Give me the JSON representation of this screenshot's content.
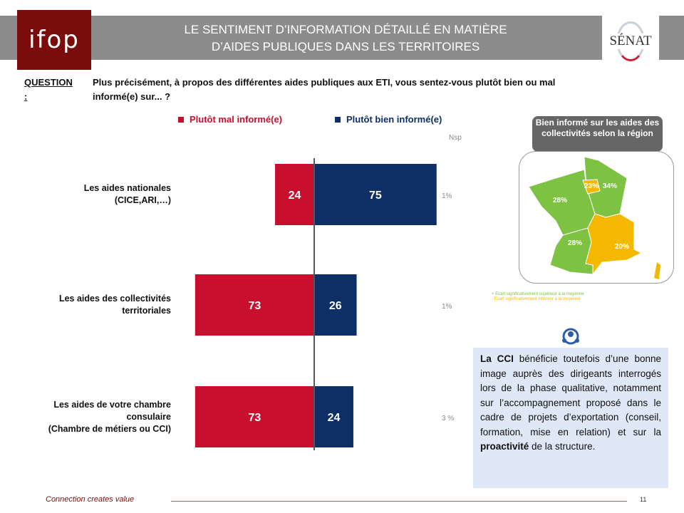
{
  "header": {
    "logo": "ifop",
    "title_line1": "LE SENTIMENT D’INFORMATION DÉTAILLÉ EN MATIÈRE",
    "title_line2": "D’AIDES PUBLIQUES DANS LES TERRITOIRES",
    "senat_logo": "SÉNAT"
  },
  "question": {
    "label": "QUESTION :",
    "text": "Plus précisément, à propos des différentes aides publiques aux ETI, vous sentez-vous plutôt bien ou mal informé(e) sur... ?"
  },
  "chart_data": {
    "type": "bar",
    "orientation": "horizontal-diverging",
    "categories": [
      "Les aides nationales (CICE,ARI,…)",
      "Les aides des collectivités territoriales",
      "Les aides de votre chambre consulaire (Chambre de métiers ou CCI)"
    ],
    "category_lines": [
      [
        "Les aides nationales",
        "(CICE,ARI,…)"
      ],
      [
        "Les aides des collectivités",
        "territoriales"
      ],
      [
        "Les aides de votre chambre",
        "consulaire",
        "(Chambre de métiers ou CCI)"
      ]
    ],
    "series": [
      {
        "name": "Plutôt mal informé(e)",
        "values": [
          24,
          73,
          73
        ],
        "color": "#c8102e"
      },
      {
        "name": "Plutôt bien informé(e)",
        "values": [
          75,
          26,
          24
        ],
        "color": "#0d2f66"
      }
    ],
    "nsp_label": "Nsp",
    "nsp": [
      "1%",
      "1%",
      "3 %"
    ],
    "legend_position": "top"
  },
  "map": {
    "title": "Bien informé sur les aides des collectivités selon la région",
    "regions": [
      {
        "label": "23%",
        "color": "#f5b800"
      },
      {
        "label": "34%",
        "color": "#7dc242"
      },
      {
        "label": "28%",
        "color": "#7dc242"
      },
      {
        "label": "28%",
        "color": "#7dc242"
      },
      {
        "label": "20%",
        "color": "#f5b800"
      }
    ],
    "legend": [
      "+ Ecart significativement supérieur à la moyenne",
      "- Ecart significativement inférieur à la moyenne"
    ],
    "legend_colors": [
      "#7dc242",
      "#f5b800"
    ]
  },
  "note": {
    "p1": "La CCI",
    "p2": " bénéficie toutefois d’une bonne image auprès des dirigeants interrogés lors de la phase qualitative, notamment sur l’accompagnement proposé dans le cadre de projets d’exportation (conseil, formation, mise en relation) et sur la ",
    "p3": "proactivité",
    "p4": " de la structure."
  },
  "footer": {
    "tagline": "Connection creates value",
    "page": "11"
  }
}
